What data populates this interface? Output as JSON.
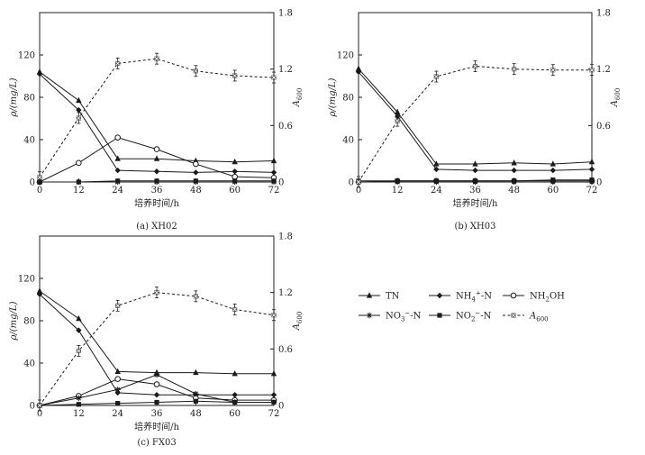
{
  "chart_data": [
    {
      "type": "line",
      "caption": "(a) XH02",
      "xlabel": "培养时间/h",
      "ylabel": "ρ/(mg/L)",
      "y2label": "A600",
      "x": [
        0,
        12,
        24,
        36,
        48,
        60,
        72
      ],
      "xticks": [
        "0",
        "12",
        "24",
        "36",
        "48",
        "60",
        "72"
      ],
      "ylim": [
        0,
        160
      ],
      "yticks": [
        "0",
        "40",
        "80",
        "120"
      ],
      "y2lim": [
        0,
        1.8
      ],
      "y2ticks": [
        "0",
        "0.6",
        "1.2",
        "1.8"
      ],
      "series": [
        {
          "name": "TN",
          "axis": "left",
          "values": [
            104,
            77,
            22,
            22,
            20,
            19,
            20
          ]
        },
        {
          "name": "NH4+-N",
          "axis": "left",
          "values": [
            102,
            68,
            11,
            10,
            9,
            10,
            9
          ]
        },
        {
          "name": "NH2OH",
          "axis": "left",
          "values": [
            0,
            18,
            42,
            31,
            17,
            5,
            4
          ]
        },
        {
          "name": "NO3−-N",
          "axis": "left",
          "values": [
            0,
            0,
            0,
            0,
            0,
            0,
            0
          ]
        },
        {
          "name": "NO2−-N",
          "axis": "left",
          "values": [
            0,
            0,
            1,
            1,
            1,
            1,
            1
          ]
        },
        {
          "name": "A600",
          "axis": "right",
          "values": [
            0.05,
            0.68,
            1.26,
            1.31,
            1.18,
            1.13,
            1.11
          ]
        }
      ]
    },
    {
      "type": "line",
      "caption": "(b) XH03",
      "xlabel": "培养时间/h",
      "ylabel": "ρ/(mg/L)",
      "y2label": "A600",
      "x": [
        0,
        12,
        24,
        36,
        48,
        60,
        72
      ],
      "xticks": [
        "0",
        "12",
        "24",
        "36",
        "48",
        "60",
        "72"
      ],
      "ylim": [
        0,
        160
      ],
      "yticks": [
        "0",
        "40",
        "80",
        "120"
      ],
      "y2lim": [
        0,
        1.8
      ],
      "y2ticks": [
        "0",
        "0.6",
        "1.2",
        "1.8"
      ],
      "series": [
        {
          "name": "TN",
          "axis": "left",
          "values": [
            107,
            66,
            17,
            17,
            18,
            17,
            19
          ]
        },
        {
          "name": "NH4+-N",
          "axis": "left",
          "values": [
            104,
            62,
            12,
            11,
            11,
            11,
            12
          ]
        },
        {
          "name": "NH2OH",
          "axis": "left",
          "values": [
            0,
            1,
            1,
            1,
            1,
            1,
            1
          ]
        },
        {
          "name": "NO3−-N",
          "axis": "left",
          "values": [
            0,
            0,
            0,
            0,
            0,
            0,
            0
          ]
        },
        {
          "name": "NO2−-N",
          "axis": "left",
          "values": [
            1,
            1,
            1,
            1,
            1,
            2,
            2
          ]
        },
        {
          "name": "A600",
          "axis": "right",
          "values": [
            0.0,
            0.65,
            1.12,
            1.23,
            1.2,
            1.19,
            1.19
          ]
        }
      ]
    },
    {
      "type": "line",
      "caption": "(c) FX03",
      "xlabel": "培养时间/h",
      "ylabel": "ρ/(mg/L)",
      "y2label": "A600",
      "x": [
        0,
        12,
        24,
        36,
        48,
        60,
        72
      ],
      "xticks": [
        "0",
        "12",
        "24",
        "36",
        "48",
        "60",
        "72"
      ],
      "ylim": [
        0,
        160
      ],
      "yticks": [
        "0",
        "40",
        "80",
        "120"
      ],
      "y2lim": [
        0,
        1.8
      ],
      "y2ticks": [
        "0",
        "0.6",
        "1.2",
        "1.8"
      ],
      "series": [
        {
          "name": "TN",
          "axis": "left",
          "values": [
            108,
            82,
            32,
            31,
            31,
            30,
            30
          ]
        },
        {
          "name": "NH4+-N",
          "axis": "left",
          "values": [
            105,
            71,
            12,
            10,
            10,
            10,
            10
          ]
        },
        {
          "name": "NH2OH",
          "axis": "left",
          "values": [
            0,
            9,
            25,
            20,
            7,
            5,
            5
          ]
        },
        {
          "name": "NO3−-N",
          "axis": "left",
          "values": [
            0,
            7,
            15,
            29,
            11,
            3,
            3
          ]
        },
        {
          "name": "NO2−-N",
          "axis": "left",
          "values": [
            0,
            1,
            2,
            3,
            4,
            3,
            3
          ]
        },
        {
          "name": "A600",
          "axis": "right",
          "values": [
            0.0,
            0.58,
            1.06,
            1.2,
            1.16,
            1.02,
            0.96
          ]
        }
      ]
    }
  ],
  "legend": {
    "placement": "bottom-right",
    "items": [
      {
        "label": "TN",
        "marker": "triangle",
        "dash": "solid"
      },
      {
        "label": "NH4+-N",
        "marker": "diamond",
        "dash": "solid"
      },
      {
        "label": "NH2OH",
        "marker": "circle-open",
        "dash": "solid"
      },
      {
        "label": "NO3−-N",
        "marker": "asterisk",
        "dash": "solid"
      },
      {
        "label": "NO2−-N",
        "marker": "square",
        "dash": "solid"
      },
      {
        "label": "A600",
        "marker": "square-x",
        "dash": "dashed"
      }
    ]
  },
  "colors": {
    "ink": "#1a1a1a",
    "axis": "#222222"
  }
}
